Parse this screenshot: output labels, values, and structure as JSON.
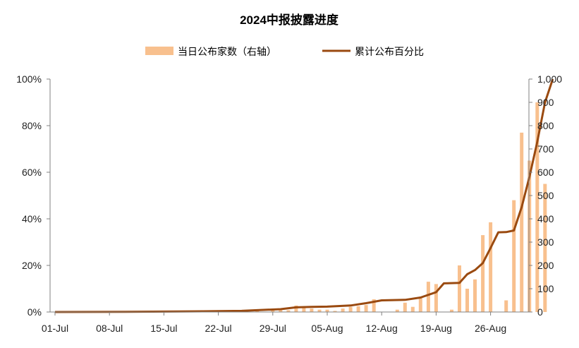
{
  "chart_data": {
    "type": "bar+line",
    "title": "2024中报披露进度",
    "legend": [
      "当日公布家数（右轴）",
      "累计公布百分比"
    ],
    "x_tick_labels": [
      "01-Jul",
      "08-Jul",
      "15-Jul",
      "22-Jul",
      "29-Jul",
      "05-Aug",
      "12-Aug",
      "19-Aug",
      "26-Aug"
    ],
    "y_left_ticks": [
      "0%",
      "20%",
      "40%",
      "60%",
      "80%",
      "100%"
    ],
    "y_right_ticks": [
      "0",
      "100",
      "200",
      "300",
      "400",
      "500",
      "600",
      "700",
      "800",
      "900",
      "1,000"
    ],
    "y_left_range": [
      0,
      100
    ],
    "y_right_range": [
      0,
      1000
    ],
    "colors": {
      "bar": "#F8C08E",
      "line": "#9A4A10",
      "axis": "#808080"
    },
    "series": [
      {
        "name": "当日公布家数（右轴）",
        "axis": "right",
        "kind": "bar",
        "points": [
          [
            "2024-07-10",
            2
          ],
          [
            "2024-07-12",
            2
          ],
          [
            "2024-07-16",
            2
          ],
          [
            "2024-07-18",
            2
          ],
          [
            "2024-07-22",
            3
          ],
          [
            "2024-07-25",
            3
          ],
          [
            "2024-07-27",
            5
          ],
          [
            "2024-07-29",
            7
          ],
          [
            "2024-07-30",
            12
          ],
          [
            "2024-07-31",
            8
          ],
          [
            "2024-08-01",
            28
          ],
          [
            "2024-08-02",
            17
          ],
          [
            "2024-08-03",
            15
          ],
          [
            "2024-08-04",
            10
          ],
          [
            "2024-08-05",
            10
          ],
          [
            "2024-08-06",
            5
          ],
          [
            "2024-08-07",
            15
          ],
          [
            "2024-08-08",
            22
          ],
          [
            "2024-08-09",
            25
          ],
          [
            "2024-08-10",
            30
          ],
          [
            "2024-08-11",
            55
          ],
          [
            "2024-08-14",
            10
          ],
          [
            "2024-08-15",
            40
          ],
          [
            "2024-08-16",
            22
          ],
          [
            "2024-08-17",
            65
          ],
          [
            "2024-08-18",
            130
          ],
          [
            "2024-08-19",
            120
          ],
          [
            "2024-08-21",
            10
          ],
          [
            "2024-08-22",
            200
          ],
          [
            "2024-08-23",
            100
          ],
          [
            "2024-08-24",
            140
          ],
          [
            "2024-08-25",
            330
          ],
          [
            "2024-08-26",
            385
          ],
          [
            "2024-08-28",
            50
          ],
          [
            "2024-08-29",
            480
          ],
          [
            "2024-08-30",
            770
          ],
          [
            "2024-08-31",
            650
          ],
          [
            "2024-09-01",
            900
          ],
          [
            "2024-09-02",
            550
          ]
        ]
      },
      {
        "name": "累计公布百分比",
        "axis": "left",
        "kind": "line",
        "points": [
          [
            "2024-07-01",
            0
          ],
          [
            "2024-07-10",
            0.1
          ],
          [
            "2024-07-20",
            0.3
          ],
          [
            "2024-07-25",
            0.5
          ],
          [
            "2024-07-27",
            0.8
          ],
          [
            "2024-07-30",
            1.2
          ],
          [
            "2024-08-01",
            2.0
          ],
          [
            "2024-08-03",
            2.2
          ],
          [
            "2024-08-05",
            2.3
          ],
          [
            "2024-08-08",
            2.8
          ],
          [
            "2024-08-10",
            3.8
          ],
          [
            "2024-08-12",
            5.0
          ],
          [
            "2024-08-15",
            5.2
          ],
          [
            "2024-08-17",
            6.2
          ],
          [
            "2024-08-19",
            8.5
          ],
          [
            "2024-08-20",
            12.3
          ],
          [
            "2024-08-22",
            12.5
          ],
          [
            "2024-08-23",
            16.2
          ],
          [
            "2024-08-24",
            18.0
          ],
          [
            "2024-08-25",
            21.0
          ],
          [
            "2024-08-26",
            27.5
          ],
          [
            "2024-08-27",
            34.2
          ],
          [
            "2024-08-28",
            34.3
          ],
          [
            "2024-08-29",
            35.0
          ],
          [
            "2024-08-30",
            45.0
          ],
          [
            "2024-08-31",
            58.0
          ],
          [
            "2024-09-01",
            73.0
          ],
          [
            "2024-09-02",
            90.0
          ],
          [
            "2024-09-03",
            100.0
          ]
        ]
      }
    ]
  }
}
